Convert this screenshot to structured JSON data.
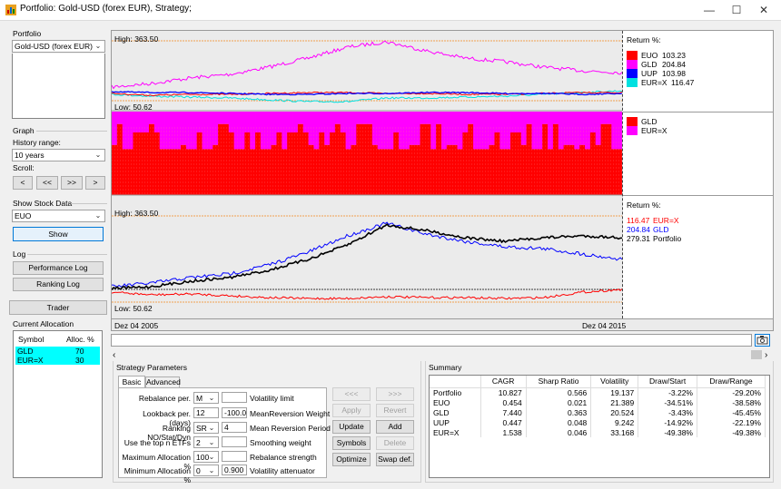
{
  "window": {
    "title": "Portfolio: Gold-USD (forex EUR), Strategy;"
  },
  "sidebar": {
    "portfolio": {
      "title": "Portfolio",
      "selected": "Gold-USD (forex EUR)"
    },
    "graph": {
      "title": "Graph",
      "history_label": "History range:",
      "history_selected": "10 years",
      "scroll_label": "Scroll:",
      "scroll_buttons": [
        "<",
        "<<",
        ">>",
        ">"
      ]
    },
    "show_stock": {
      "title": "Show Stock Data",
      "selected": "EUO",
      "show_label": "Show"
    },
    "log": {
      "title": "Log",
      "performance_label": "Performance Log",
      "ranking_label": "Ranking Log"
    },
    "trader_label": "Trader",
    "allocation": {
      "title": "Current Allocation",
      "headers": [
        "Symbol",
        "Alloc. %"
      ],
      "rows": [
        {
          "symbol": "GLD",
          "alloc": "70"
        },
        {
          "symbol": "EUR=X",
          "alloc": "30"
        }
      ]
    }
  },
  "top_chart": {
    "high_label": "High: 363.50",
    "low_label": "Low: 50.62",
    "legend_title": "Return %:",
    "legend": [
      {
        "name": "EUO",
        "value": "103.23",
        "color": "#ff0000"
      },
      {
        "name": "GLD",
        "value": "204.84",
        "color": "#ff00ff"
      },
      {
        "name": "UUP",
        "value": "103.98",
        "color": "#0000ff"
      },
      {
        "name": "EUR=X",
        "value": "116.47",
        "color": "#00e0e0"
      }
    ]
  },
  "alloc_chart": {
    "legend": [
      {
        "name": "GLD",
        "color": "#ff0000"
      },
      {
        "name": "EUR=X",
        "color": "#ff00ff"
      }
    ]
  },
  "bottom_chart": {
    "high_label": "High: 363.50",
    "low_label": "Low: 50.62",
    "legend_title": "Return %:",
    "legend": [
      {
        "value": "116.47",
        "name": "EUR=X",
        "color": "#ff0000"
      },
      {
        "value": "204.84",
        "name": "GLD",
        "color": "#0000ff"
      },
      {
        "value": "279.31",
        "name": "Portfolio",
        "color": "#000000"
      }
    ],
    "date_start": "Dez 04 2005",
    "date_end": "Dez 04 2015"
  },
  "strategy": {
    "title": "Strategy Parameters",
    "tabs": [
      "Basic",
      "Advanced"
    ],
    "params": {
      "rebalance_label": "Rebalance per.",
      "rebalance_value": "M",
      "lookback_label": "Lookback per.(days)",
      "lookback_value": "12",
      "ranking_label": "Ranking NO/Stat/Dyn",
      "ranking_value": "SR",
      "topn_label": "Use the top n ETFs",
      "topn_value": "2",
      "maxalloc_label": "Maximum Allocation %",
      "maxalloc_value": "100",
      "minalloc_label": "Minimum Allocation %",
      "minalloc_value": "0",
      "vol_limit_label": "Volatility limit",
      "vol_limit_value": "",
      "mr_weight_label": "MeanReversion Weight",
      "mr_weight_value": "-100.00",
      "mr_period_label": "Mean Reversion Period",
      "mr_period_value": "4",
      "smoothing_label": "Smoothing  weight",
      "smoothing_value": "",
      "reb_strength_label": "Rebalance strength",
      "reb_strength_value": "",
      "vol_att_label": "Volatility attenuator",
      "vol_att_value": "0.900"
    },
    "buttons": {
      "prev": "<<<",
      "next": ">>>",
      "apply": "Apply",
      "revert": "Revert",
      "update": "Update",
      "add": "Add",
      "symbols": "Symbols",
      "delete": "Delete",
      "optimize": "Optimize",
      "swapdef": "Swap def."
    }
  },
  "summary": {
    "title": "Summary",
    "headers": [
      "",
      "CAGR",
      "Sharp Ratio",
      "Volatility",
      "Draw/Start",
      "Draw/Range"
    ],
    "rows": [
      [
        "Portfolio",
        "10.827",
        "0.566",
        "19.137",
        "-3.22%",
        "-29.20%"
      ],
      [
        "EUO",
        "0.454",
        "0.021",
        "21.389",
        "-34.51%",
        "-38.58%"
      ],
      [
        "GLD",
        "7.440",
        "0.363",
        "20.524",
        "-3.43%",
        "-45.45%"
      ],
      [
        "UUP",
        "0.447",
        "0.048",
        "9.242",
        "-14.92%",
        "-22.19%"
      ],
      [
        "EUR=X",
        "1.538",
        "0.046",
        "33.168",
        "-49.38%",
        "-49.38%"
      ]
    ]
  }
}
